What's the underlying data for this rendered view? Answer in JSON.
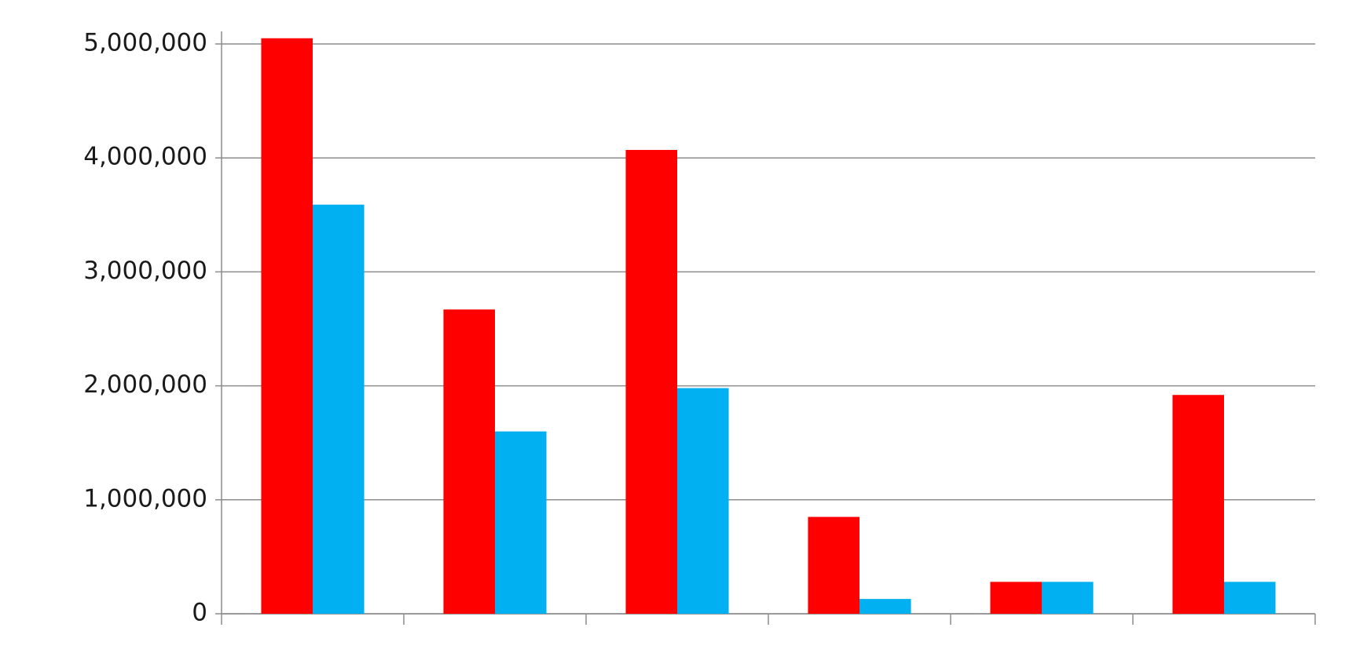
{
  "chart_data": {
    "type": "bar",
    "categories": [
      null,
      null,
      null,
      null,
      null,
      null
    ],
    "series": [
      {
        "color": "#ff0000",
        "values": [
          5050000,
          2670000,
          4070000,
          850000,
          280000,
          1920000
        ]
      },
      {
        "color": "#00b0f0",
        "values": [
          3590000,
          1600000,
          1980000,
          130000,
          280000,
          280000
        ]
      }
    ],
    "ylim": [
      0,
      5000000
    ],
    "yticks": [
      0,
      {
        "value": 1000000,
        "label": "1,000,000"
      },
      {
        "value": 2000000,
        "label": "2,000,000"
      },
      {
        "value": 3000000,
        "label": "3,000,000"
      },
      {
        "value": 4000000,
        "label": "4,000,000"
      },
      {
        "value": 5000000,
        "label": "5,000,000"
      }
    ],
    "grid": true
  }
}
